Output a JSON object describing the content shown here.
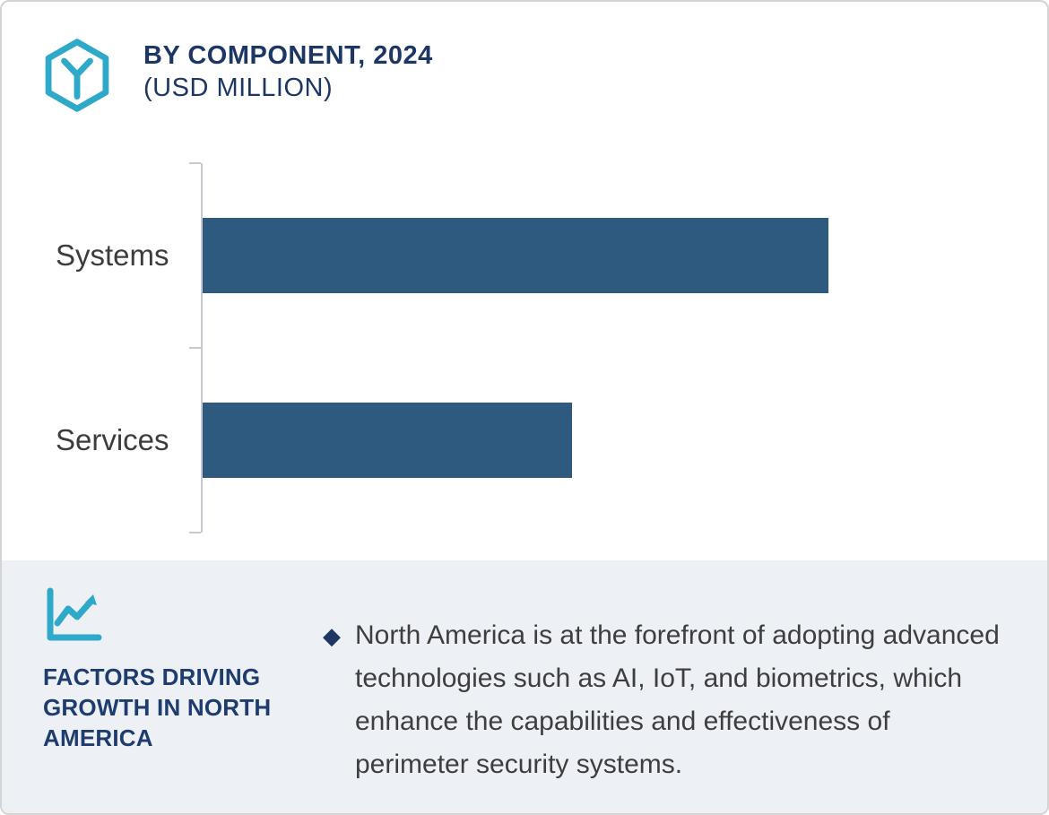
{
  "header": {
    "title": "BY COMPONENT, 2024",
    "subtitle": "(USD MILLION)"
  },
  "chart_data": {
    "type": "bar",
    "orientation": "horizontal",
    "title": "BY COMPONENT, 2024 (USD MILLION)",
    "categories": [
      "Systems",
      "Services"
    ],
    "values": [
      100,
      59
    ],
    "xlim": [
      0,
      135
    ],
    "xlabel": "",
    "ylabel": "",
    "grid": false,
    "legend": false,
    "bar_color": "#2e5a7f"
  },
  "footer": {
    "bullet_glyph": "◆",
    "heading": "FACTORS DRIVING GROWTH IN NORTH AMERICA",
    "bullet": "North America is at the forefront of adopting advanced technologies such as AI, IoT, and biometrics, which enhance the capabilities and effectiveness of perimeter security systems."
  },
  "icons": {
    "logo": "hexagon-y-logo-icon",
    "growth": "line-chart-icon",
    "bullet": "diamond-bullet-icon"
  },
  "colors": {
    "accent_teal": "#2ea9c9",
    "navy": "#1d3765",
    "bar": "#2e5a7f",
    "panel_bg": "#edf0f4",
    "text_gray": "#3e3e3e",
    "axis_gray": "#c6cad0"
  }
}
